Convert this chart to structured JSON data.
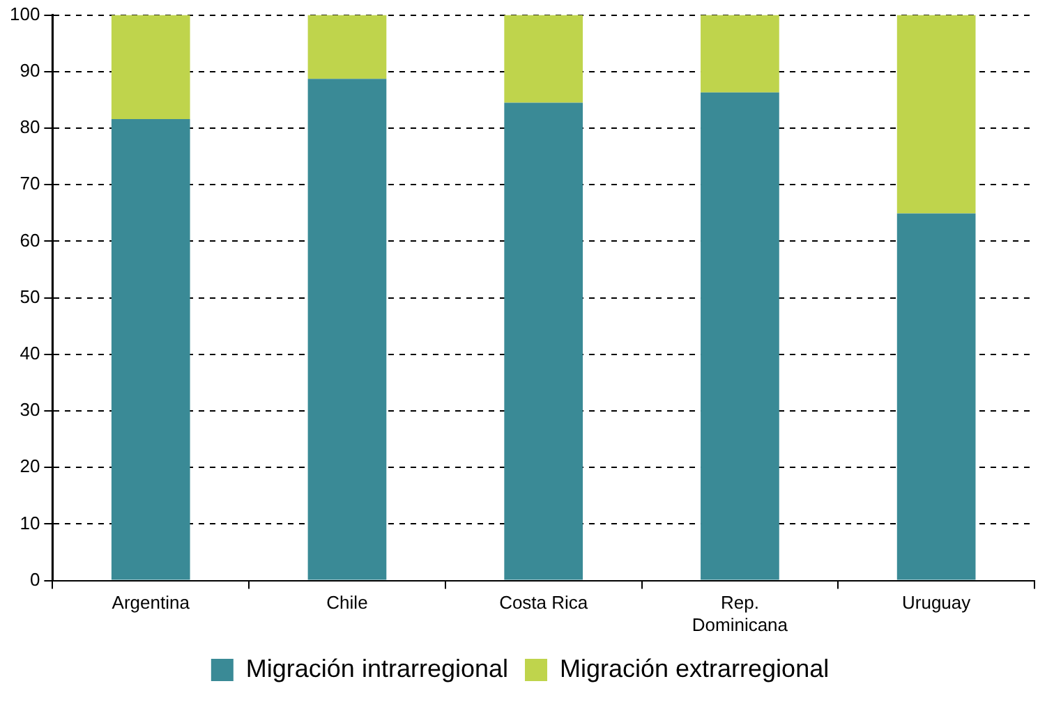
{
  "chart_data": {
    "type": "bar",
    "stacked": true,
    "categories": [
      "Argentina",
      "Chile",
      "Costa Rica",
      "Rep. Dominicana",
      "Uruguay"
    ],
    "series": [
      {
        "name": "Migración intrarregional",
        "color": "#3a8a96",
        "values": [
          81.6,
          88.7,
          84.5,
          86.3,
          64.9
        ]
      },
      {
        "name": "Migración extrarregional",
        "color": "#bfd44c",
        "values": [
          18.4,
          11.3,
          15.5,
          13.7,
          35.1
        ]
      }
    ],
    "ylim": [
      0,
      100
    ],
    "yticks": [
      0,
      10,
      20,
      30,
      40,
      50,
      60,
      70,
      80,
      90,
      100
    ],
    "grid": "y",
    "legend": "bottom"
  }
}
